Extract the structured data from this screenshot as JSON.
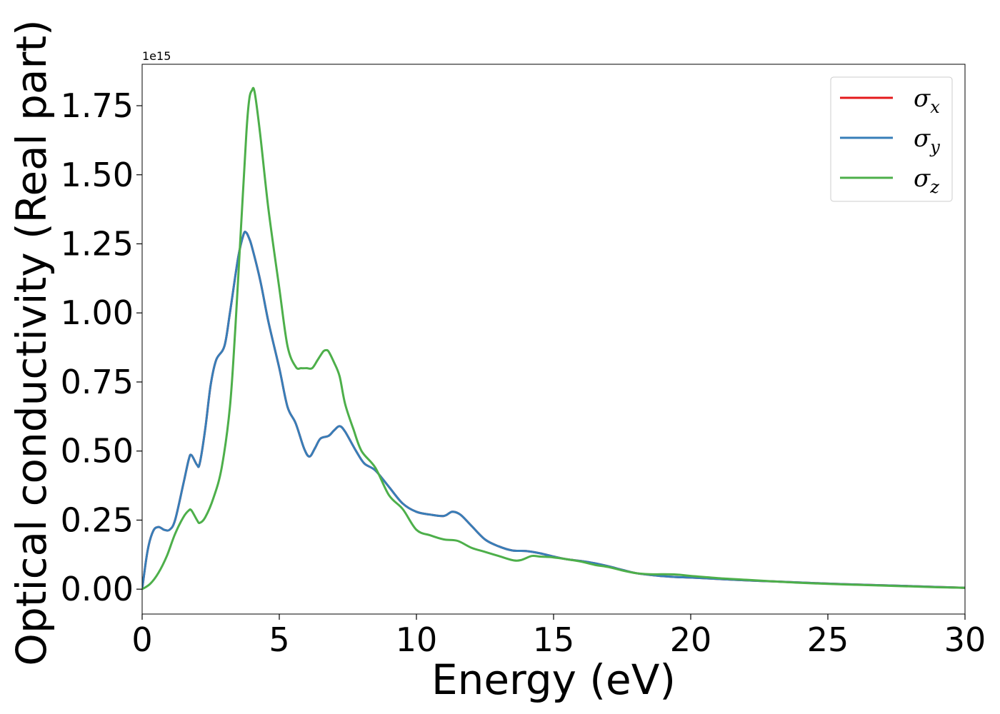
{
  "chart_data": {
    "type": "line",
    "xlabel": "Energy (eV)",
    "ylabel": "Optical conductivity (Real part)",
    "y_offset_label": "1e15",
    "xlim": [
      0,
      30
    ],
    "ylim": [
      -0.09,
      1.9
    ],
    "xticks": [
      0,
      5,
      10,
      15,
      20,
      25,
      30
    ],
    "xtick_labels": [
      "0",
      "5",
      "10",
      "15",
      "20",
      "25",
      "30"
    ],
    "yticks": [
      0.0,
      0.25,
      0.5,
      0.75,
      1.0,
      1.25,
      1.5,
      1.75
    ],
    "ytick_labels": [
      "0.00",
      "0.25",
      "0.50",
      "0.75",
      "1.00",
      "1.25",
      "1.50",
      "1.75"
    ],
    "grid": false,
    "legend_position": "top-right",
    "series": [
      {
        "name": "σx",
        "legend_symbol": "σ",
        "legend_sub": "x",
        "color": "#e41a1c",
        "x": [
          0,
          0.2,
          0.4,
          0.6,
          0.8,
          1.0,
          1.2,
          1.5,
          1.7,
          1.8,
          2.0,
          2.1,
          2.3,
          2.5,
          2.7,
          3.0,
          3.2,
          3.5,
          3.7,
          3.8,
          3.9,
          4.0,
          4.3,
          4.6,
          5.0,
          5.3,
          5.6,
          5.9,
          6.1,
          6.3,
          6.5,
          6.8,
          7.0,
          7.2,
          7.4,
          7.8,
          8.1,
          8.5,
          9.0,
          9.5,
          10.0,
          10.5,
          11.0,
          11.3,
          11.6,
          12.0,
          12.5,
          13.0,
          13.5,
          14.0,
          14.5,
          15.0,
          15.5,
          16.0,
          16.5,
          17.0,
          17.5,
          18.0,
          18.5,
          19.0,
          19.5,
          20.0,
          21.0,
          22.0,
          23.0,
          24.0,
          25.0,
          26.0,
          27.0,
          28.0,
          29.0,
          30.0
        ],
        "y": [
          0.0,
          0.14,
          0.21,
          0.225,
          0.215,
          0.215,
          0.25,
          0.38,
          0.47,
          0.485,
          0.45,
          0.455,
          0.58,
          0.74,
          0.83,
          0.88,
          1.0,
          1.2,
          1.285,
          1.29,
          1.27,
          1.24,
          1.12,
          0.97,
          0.8,
          0.66,
          0.6,
          0.51,
          0.48,
          0.51,
          0.545,
          0.555,
          0.575,
          0.59,
          0.57,
          0.5,
          0.455,
          0.43,
          0.37,
          0.31,
          0.28,
          0.27,
          0.265,
          0.28,
          0.27,
          0.23,
          0.18,
          0.155,
          0.14,
          0.138,
          0.13,
          0.118,
          0.108,
          0.102,
          0.094,
          0.083,
          0.07,
          0.058,
          0.052,
          0.047,
          0.044,
          0.042,
          0.037,
          0.032,
          0.028,
          0.024,
          0.02,
          0.017,
          0.014,
          0.011,
          0.008,
          0.005
        ]
      },
      {
        "name": "σy",
        "legend_symbol": "σ",
        "legend_sub": "y",
        "color": "#377eb8",
        "x": [
          0,
          0.2,
          0.4,
          0.6,
          0.8,
          1.0,
          1.2,
          1.5,
          1.7,
          1.8,
          2.0,
          2.1,
          2.3,
          2.5,
          2.7,
          3.0,
          3.2,
          3.5,
          3.7,
          3.8,
          3.9,
          4.0,
          4.3,
          4.6,
          5.0,
          5.3,
          5.6,
          5.9,
          6.1,
          6.3,
          6.5,
          6.8,
          7.0,
          7.2,
          7.4,
          7.8,
          8.1,
          8.5,
          9.0,
          9.5,
          10.0,
          10.5,
          11.0,
          11.3,
          11.6,
          12.0,
          12.5,
          13.0,
          13.5,
          14.0,
          14.5,
          15.0,
          15.5,
          16.0,
          16.5,
          17.0,
          17.5,
          18.0,
          18.5,
          19.0,
          19.5,
          20.0,
          21.0,
          22.0,
          23.0,
          24.0,
          25.0,
          26.0,
          27.0,
          28.0,
          29.0,
          30.0
        ],
        "y": [
          0.0,
          0.14,
          0.21,
          0.225,
          0.215,
          0.215,
          0.25,
          0.38,
          0.47,
          0.485,
          0.45,
          0.455,
          0.58,
          0.74,
          0.83,
          0.88,
          1.0,
          1.2,
          1.285,
          1.29,
          1.27,
          1.24,
          1.12,
          0.97,
          0.8,
          0.66,
          0.6,
          0.51,
          0.48,
          0.51,
          0.545,
          0.555,
          0.575,
          0.59,
          0.57,
          0.5,
          0.455,
          0.43,
          0.37,
          0.31,
          0.28,
          0.27,
          0.265,
          0.28,
          0.27,
          0.23,
          0.18,
          0.155,
          0.14,
          0.138,
          0.13,
          0.118,
          0.108,
          0.102,
          0.094,
          0.083,
          0.07,
          0.058,
          0.052,
          0.047,
          0.044,
          0.042,
          0.037,
          0.032,
          0.028,
          0.024,
          0.02,
          0.017,
          0.014,
          0.011,
          0.008,
          0.005
        ]
      },
      {
        "name": "σz",
        "legend_symbol": "σ",
        "legend_sub": "z",
        "color": "#4daf4a",
        "x": [
          0,
          0.3,
          0.6,
          0.9,
          1.2,
          1.5,
          1.7,
          1.8,
          2.0,
          2.1,
          2.3,
          2.6,
          2.9,
          3.2,
          3.4,
          3.6,
          3.8,
          3.9,
          4.0,
          4.1,
          4.3,
          4.6,
          5.0,
          5.3,
          5.6,
          5.8,
          6.0,
          6.2,
          6.4,
          6.6,
          6.7,
          6.8,
          7.0,
          7.2,
          7.4,
          7.7,
          8.0,
          8.5,
          9.0,
          9.5,
          10.0,
          10.5,
          11.0,
          11.5,
          12.0,
          12.5,
          13.0,
          13.5,
          13.8,
          14.2,
          14.5,
          15.0,
          15.5,
          16.0,
          16.5,
          17.0,
          17.5,
          18.0,
          18.5,
          19.0,
          19.5,
          20.0,
          21.0,
          22.0,
          23.0,
          24.0,
          25.0,
          26.0,
          27.0,
          28.0,
          29.0,
          30.0
        ],
        "y": [
          0.0,
          0.02,
          0.06,
          0.12,
          0.2,
          0.26,
          0.285,
          0.285,
          0.25,
          0.24,
          0.26,
          0.33,
          0.44,
          0.66,
          0.95,
          1.3,
          1.65,
          1.77,
          1.805,
          1.8,
          1.65,
          1.38,
          1.09,
          0.88,
          0.805,
          0.8,
          0.8,
          0.8,
          0.83,
          0.86,
          0.865,
          0.86,
          0.82,
          0.77,
          0.67,
          0.58,
          0.5,
          0.44,
          0.34,
          0.29,
          0.215,
          0.195,
          0.18,
          0.175,
          0.15,
          0.135,
          0.12,
          0.105,
          0.105,
          0.12,
          0.118,
          0.115,
          0.108,
          0.1,
          0.088,
          0.08,
          0.068,
          0.058,
          0.054,
          0.054,
          0.053,
          0.048,
          0.04,
          0.034,
          0.028,
          0.023,
          0.019,
          0.016,
          0.013,
          0.01,
          0.007,
          0.005
        ]
      }
    ]
  }
}
